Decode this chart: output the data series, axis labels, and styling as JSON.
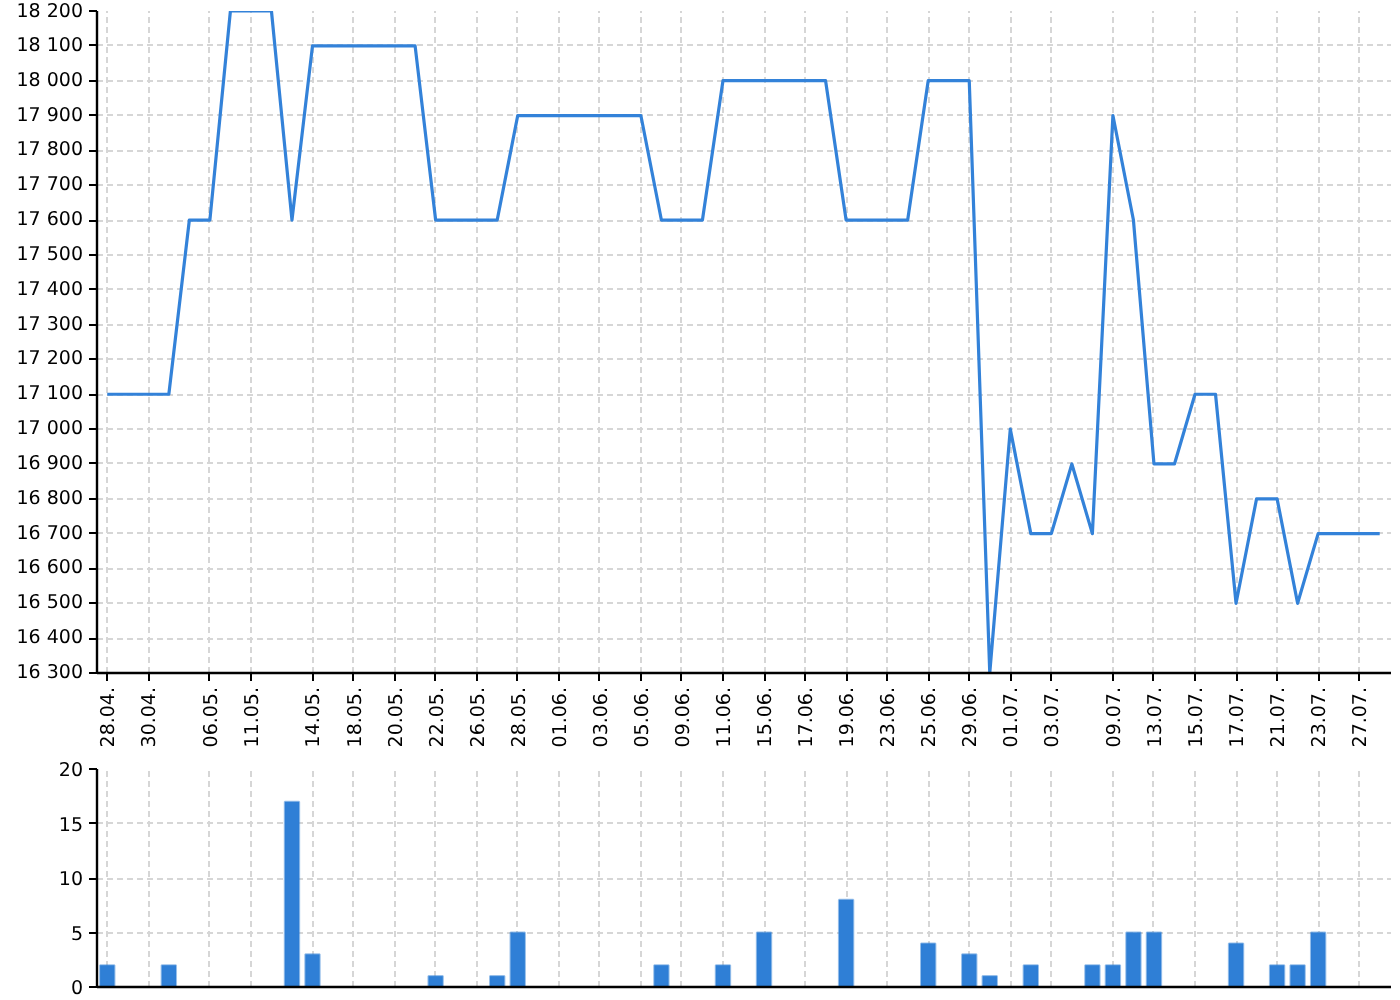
{
  "chart_data": [
    {
      "type": "line",
      "categories": [
        "28.04.",
        null,
        "30.04.",
        null,
        null,
        "06.05.",
        null,
        "11.05.",
        null,
        null,
        "14.05.",
        null,
        "18.05.",
        null,
        "20.05.",
        null,
        "22.05.",
        null,
        "26.05.",
        null,
        "28.05.",
        null,
        "01.06.",
        null,
        "03.06.",
        null,
        "05.06.",
        null,
        "09.06.",
        null,
        "11.06.",
        null,
        "15.06.",
        null,
        "17.06.",
        null,
        "19.06.",
        null,
        "23.06.",
        null,
        "25.06.",
        null,
        "29.06.",
        null,
        "01.07.",
        null,
        "03.07.",
        null,
        null,
        "09.07.",
        null,
        "13.07.",
        null,
        "15.07.",
        null,
        "17.07.",
        null,
        "21.07.",
        null,
        "23.07.",
        null,
        "27.07.",
        null
      ],
      "values": [
        17100,
        17100,
        17100,
        17100,
        17600,
        17600,
        18200,
        18200,
        18200,
        17600,
        18100,
        18100,
        18100,
        18100,
        18100,
        18100,
        17600,
        17600,
        17600,
        17600,
        17900,
        17900,
        17900,
        17900,
        17900,
        17900,
        17900,
        17600,
        17600,
        17600,
        18000,
        18000,
        18000,
        18000,
        18000,
        18000,
        17600,
        17600,
        17600,
        17600,
        18000,
        18000,
        18000,
        16300,
        17000,
        16700,
        16700,
        16900,
        16700,
        17900,
        17600,
        16900,
        16900,
        17100,
        17100,
        16500,
        16800,
        16800,
        16500,
        16700,
        16700,
        16700,
        16700
      ],
      "color": "#3382d9",
      "line_style": "solid",
      "ylim": [
        16300,
        18200
      ],
      "yticks": [
        {
          "value": 16300,
          "label": "16 300"
        },
        {
          "value": 16400,
          "label": "16 400"
        },
        {
          "value": 16500,
          "label": "16 500"
        },
        {
          "value": 16600,
          "label": "16 600"
        },
        {
          "value": 16700,
          "label": "16 700"
        },
        {
          "value": 16800,
          "label": "16 800"
        },
        {
          "value": 16900,
          "label": "16 900"
        },
        {
          "value": 17000,
          "label": "17 000"
        },
        {
          "value": 17100,
          "label": "17 100"
        },
        {
          "value": 17200,
          "label": "17 200"
        },
        {
          "value": 17300,
          "label": "17 300"
        },
        {
          "value": 17400,
          "label": "17 400"
        },
        {
          "value": 17500,
          "label": "17 500"
        },
        {
          "value": 17600,
          "label": "17 600"
        },
        {
          "value": 17700,
          "label": "17 700"
        },
        {
          "value": 17800,
          "label": "17 800"
        },
        {
          "value": 17900,
          "label": "17 900"
        },
        {
          "value": 18000,
          "label": "18 000"
        },
        {
          "value": 18100,
          "label": "18 100"
        },
        {
          "value": 18200,
          "label": "18 200"
        }
      ],
      "grid": true
    },
    {
      "type": "bar",
      "categories": [
        "28.04.",
        null,
        "30.04.",
        null,
        null,
        "06.05.",
        null,
        "11.05.",
        null,
        null,
        "14.05.",
        null,
        "18.05.",
        null,
        "20.05.",
        null,
        "22.05.",
        null,
        "26.05.",
        null,
        "28.05.",
        null,
        "01.06.",
        null,
        "03.06.",
        null,
        "05.06.",
        null,
        "09.06.",
        null,
        "11.06.",
        null,
        "15.06.",
        null,
        "17.06.",
        null,
        "19.06.",
        null,
        "23.06.",
        null,
        "25.06.",
        null,
        "29.06.",
        null,
        "01.07.",
        null,
        "03.07.",
        null,
        null,
        "09.07.",
        null,
        "13.07.",
        null,
        "15.07.",
        null,
        "17.07.",
        null,
        "21.07.",
        null,
        "23.07.",
        null,
        "27.07.",
        null
      ],
      "values": [
        2,
        null,
        null,
        2,
        null,
        null,
        null,
        null,
        null,
        17,
        3,
        null,
        null,
        null,
        null,
        null,
        1,
        null,
        null,
        1,
        5,
        null,
        null,
        null,
        null,
        null,
        null,
        2,
        null,
        null,
        2,
        null,
        5,
        null,
        null,
        null,
        8,
        null,
        null,
        null,
        4,
        null,
        3,
        1,
        null,
        2,
        null,
        null,
        2,
        2,
        5,
        5,
        null,
        null,
        null,
        4,
        null,
        2,
        2,
        5,
        null,
        null,
        null
      ],
      "color": "#2f7fd6",
      "ylim": [
        0,
        20
      ],
      "yticks": [
        0,
        5,
        10,
        15,
        20
      ],
      "grid": true,
      "tick_labels": "y"
    }
  ]
}
